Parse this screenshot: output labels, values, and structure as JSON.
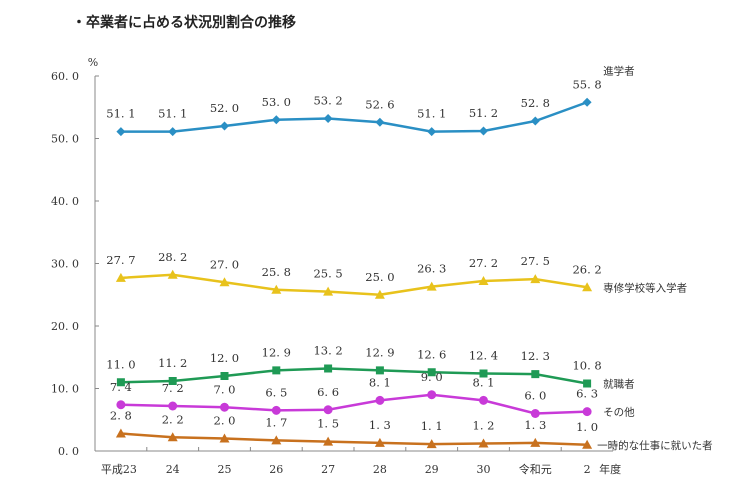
{
  "title": "・卒業者に占める状況別割合の推移",
  "chart_data": {
    "type": "line",
    "title": "・卒業者に占める状況別割合の推移",
    "ylabel": "%",
    "xlabel": "年度",
    "ylim": [
      0,
      60
    ],
    "yticks": [
      "0.0",
      "10.0",
      "20.0",
      "30.0",
      "40.0",
      "50.0",
      "60.0"
    ],
    "grid": false,
    "legend": "right, labels at line ends",
    "categories": [
      "平成23",
      "24",
      "25",
      "26",
      "27",
      "28",
      "29",
      "30",
      "令和元",
      "2"
    ],
    "series": [
      {
        "name": "進学者",
        "color": "#2a8fc4",
        "marker": "diamond",
        "values": [
          51.1,
          51.1,
          52.0,
          53.0,
          53.2,
          52.6,
          51.1,
          51.2,
          52.8,
          55.8
        ]
      },
      {
        "name": "専修学校等入学者",
        "color": "#e8c21c",
        "marker": "triangle",
        "values": [
          27.7,
          28.2,
          27.0,
          25.8,
          25.5,
          25.0,
          26.3,
          27.2,
          27.5,
          26.2
        ]
      },
      {
        "name": "就職者",
        "color": "#1f9a55",
        "marker": "square",
        "values": [
          11.0,
          11.2,
          12.0,
          12.9,
          13.2,
          12.9,
          12.6,
          12.4,
          12.3,
          10.8
        ]
      },
      {
        "name": "その他",
        "color": "#c83ad8",
        "marker": "circle",
        "values": [
          7.4,
          7.2,
          7.0,
          6.5,
          6.6,
          8.1,
          9.0,
          8.1,
          6.0,
          6.3
        ]
      },
      {
        "name": "一時的な仕事に就いた者",
        "color": "#c8711e",
        "marker": "triangle",
        "values": [
          2.8,
          2.2,
          2.0,
          1.7,
          1.5,
          1.3,
          1.1,
          1.2,
          1.3,
          1.0
        ]
      }
    ]
  }
}
